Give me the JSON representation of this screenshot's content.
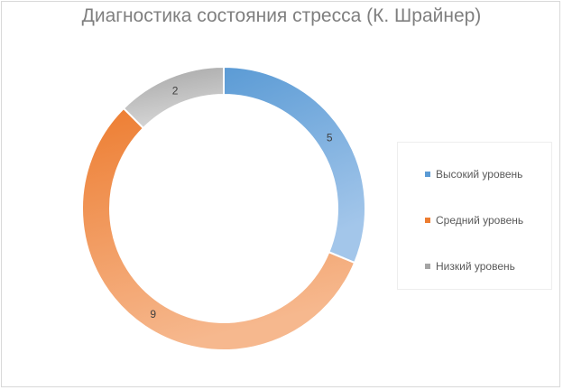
{
  "chart_data": {
    "type": "pie",
    "variant": "donut",
    "title": "Диагностика состояния стресса (К. Шрайнер)",
    "categories": [
      "Высокий уровень",
      "Средний уровень",
      "Низкий уровень"
    ],
    "values": [
      5,
      9,
      2
    ],
    "data_labels": [
      "5",
      "9",
      "2"
    ],
    "colors": {
      "Высокий уровень": [
        "#5b9bd5",
        "#a3c6ea"
      ],
      "Средний уровень": [
        "#ed7d31",
        "#f6b88e"
      ],
      "Низкий уровень": [
        "#a5a5a5",
        "#d6d6d6"
      ]
    },
    "legend_position": "right"
  }
}
